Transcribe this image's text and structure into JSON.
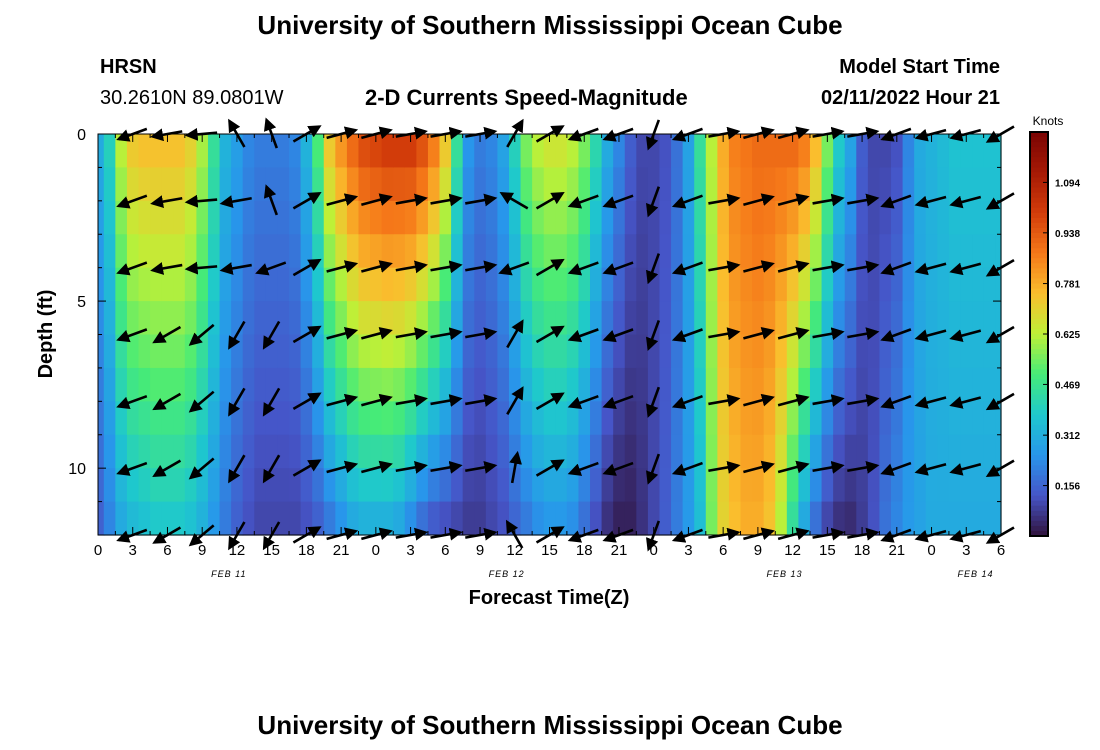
{
  "header": {
    "title": "University of Southern Mississippi Ocean Cube",
    "station": "HRSN",
    "coords": "30.2610N  89.0801W",
    "chart_title": "2-D Currents Speed-Magnitude",
    "model_label": "Model Start Time",
    "model_time": "02/11/2022 Hour 21"
  },
  "footer": {
    "title": "University of Southern Mississippi Ocean Cube"
  },
  "chart_data": {
    "type": "heatmap",
    "title": "2-D Currents Speed-Magnitude",
    "xlabel": "Forecast Time(Z)",
    "ylabel": "Depth (ft)",
    "x_range_hours": [
      0,
      78
    ],
    "y_range": [
      0,
      12
    ],
    "y_ticks": [
      0,
      5,
      10
    ],
    "x_tick_labels": [
      "0",
      "3",
      "6",
      "9",
      "12",
      "15",
      "18",
      "21",
      "0",
      "3",
      "6",
      "9",
      "12",
      "15",
      "18",
      "21",
      "0",
      "3",
      "6",
      "9",
      "12",
      "15",
      "18",
      "21",
      "0",
      "3",
      "6"
    ],
    "date_labels": [
      {
        "text": "FEB 11",
        "hour": 11.3
      },
      {
        "text": "FEB 12",
        "hour": 35.3
      },
      {
        "text": "FEB 13",
        "hour": 59.3
      },
      {
        "text": "FEB 14",
        "hour": 75.8
      }
    ],
    "colorbar": {
      "unit": "Knots",
      "min": 0.0,
      "max": 1.25,
      "tick_values": [
        1.094,
        0.938,
        0.781,
        0.625,
        0.469,
        0.312,
        0.156
      ],
      "tick_labels": [
        "1.094",
        "0.938",
        "0.781",
        "0.625",
        "0.469",
        "0.312",
        "0.156"
      ]
    },
    "speed_profile_knots": {
      "hours": [
        0,
        1,
        2,
        3,
        4,
        5,
        6,
        7,
        8,
        9,
        10,
        11,
        12,
        13,
        14,
        15,
        16,
        17,
        18,
        19,
        20,
        21,
        22,
        23,
        24,
        25,
        26,
        27,
        28,
        29,
        30,
        31,
        32,
        33,
        34,
        35,
        36,
        37,
        38,
        39,
        40,
        41,
        42,
        43,
        44,
        45,
        46,
        47,
        48,
        49,
        50,
        51,
        52,
        53,
        54,
        55,
        56,
        57,
        58,
        59,
        60,
        61,
        62,
        63,
        64,
        65,
        66,
        67,
        68,
        69,
        70,
        71,
        72,
        73,
        74,
        75,
        76,
        77,
        78
      ],
      "surface": [
        0.3,
        0.4,
        0.62,
        0.72,
        0.74,
        0.74,
        0.74,
        0.74,
        0.7,
        0.6,
        0.45,
        0.32,
        0.27,
        0.22,
        0.2,
        0.2,
        0.2,
        0.22,
        0.32,
        0.5,
        0.72,
        0.82,
        0.9,
        0.96,
        0.98,
        1.0,
        1.0,
        1.0,
        0.95,
        0.86,
        0.72,
        0.45,
        0.25,
        0.2,
        0.22,
        0.28,
        0.4,
        0.55,
        0.62,
        0.65,
        0.65,
        0.62,
        0.55,
        0.42,
        0.3,
        0.22,
        0.14,
        0.1,
        0.1,
        0.12,
        0.18,
        0.28,
        0.45,
        0.62,
        0.78,
        0.86,
        0.88,
        0.9,
        0.9,
        0.9,
        0.9,
        0.86,
        0.75,
        0.55,
        0.38,
        0.28,
        0.14,
        0.1,
        0.1,
        0.12,
        0.22,
        0.3,
        0.32,
        0.34,
        0.36,
        0.36,
        0.36,
        0.36,
        0.36
      ],
      "bottom": [
        0.15,
        0.22,
        0.3,
        0.34,
        0.36,
        0.38,
        0.38,
        0.38,
        0.36,
        0.32,
        0.26,
        0.2,
        0.15,
        0.12,
        0.1,
        0.1,
        0.1,
        0.1,
        0.12,
        0.15,
        0.2,
        0.25,
        0.3,
        0.32,
        0.32,
        0.32,
        0.3,
        0.24,
        0.18,
        0.14,
        0.12,
        0.1,
        0.08,
        0.08,
        0.1,
        0.12,
        0.16,
        0.2,
        0.24,
        0.26,
        0.26,
        0.24,
        0.18,
        0.12,
        0.06,
        0.03,
        0.03,
        0.06,
        0.1,
        0.14,
        0.2,
        0.26,
        0.35,
        0.55,
        0.7,
        0.75,
        0.78,
        0.78,
        0.74,
        0.62,
        0.45,
        0.3,
        0.18,
        0.1,
        0.06,
        0.05,
        0.08,
        0.12,
        0.18,
        0.22,
        0.26,
        0.28,
        0.3,
        0.3,
        0.3,
        0.3,
        0.3,
        0.3,
        0.3
      ]
    },
    "vectors": {
      "hours": [
        3,
        6,
        9,
        12,
        15,
        18,
        21,
        24,
        27,
        30,
        33,
        36,
        39,
        42,
        45,
        48,
        51,
        54,
        57,
        60,
        63,
        66,
        69,
        72,
        75,
        78
      ],
      "depths": [
        0,
        2,
        4,
        6,
        8,
        10,
        12
      ],
      "direction_deg": [
        [
          250,
          260,
          265,
          330,
          340,
          60,
          75,
          75,
          80,
          80,
          80,
          30,
          60,
          250,
          250,
          200,
          250,
          80,
          75,
          75,
          80,
          80,
          250,
          255,
          255,
          240
        ],
        [
          250,
          260,
          265,
          260,
          340,
          60,
          75,
          75,
          80,
          80,
          80,
          300,
          60,
          250,
          250,
          200,
          250,
          80,
          75,
          75,
          80,
          80,
          250,
          255,
          255,
          240
        ],
        [
          250,
          260,
          265,
          260,
          250,
          60,
          75,
          75,
          80,
          80,
          80,
          250,
          60,
          250,
          250,
          200,
          250,
          80,
          75,
          75,
          80,
          80,
          250,
          255,
          255,
          240
        ],
        [
          250,
          240,
          230,
          210,
          210,
          60,
          75,
          75,
          80,
          80,
          80,
          30,
          60,
          250,
          250,
          200,
          250,
          80,
          75,
          75,
          80,
          80,
          250,
          255,
          255,
          240
        ],
        [
          250,
          240,
          230,
          210,
          210,
          60,
          75,
          75,
          80,
          80,
          80,
          30,
          60,
          250,
          250,
          200,
          250,
          80,
          75,
          75,
          80,
          80,
          250,
          255,
          255,
          240
        ],
        [
          250,
          240,
          230,
          210,
          210,
          60,
          75,
          75,
          80,
          80,
          80,
          10,
          60,
          250,
          250,
          200,
          250,
          80,
          75,
          75,
          80,
          80,
          250,
          255,
          255,
          240
        ],
        [
          250,
          240,
          230,
          210,
          210,
          60,
          75,
          75,
          80,
          80,
          80,
          330,
          60,
          250,
          250,
          200,
          250,
          80,
          75,
          75,
          80,
          80,
          250,
          255,
          255,
          240
        ]
      ]
    }
  }
}
